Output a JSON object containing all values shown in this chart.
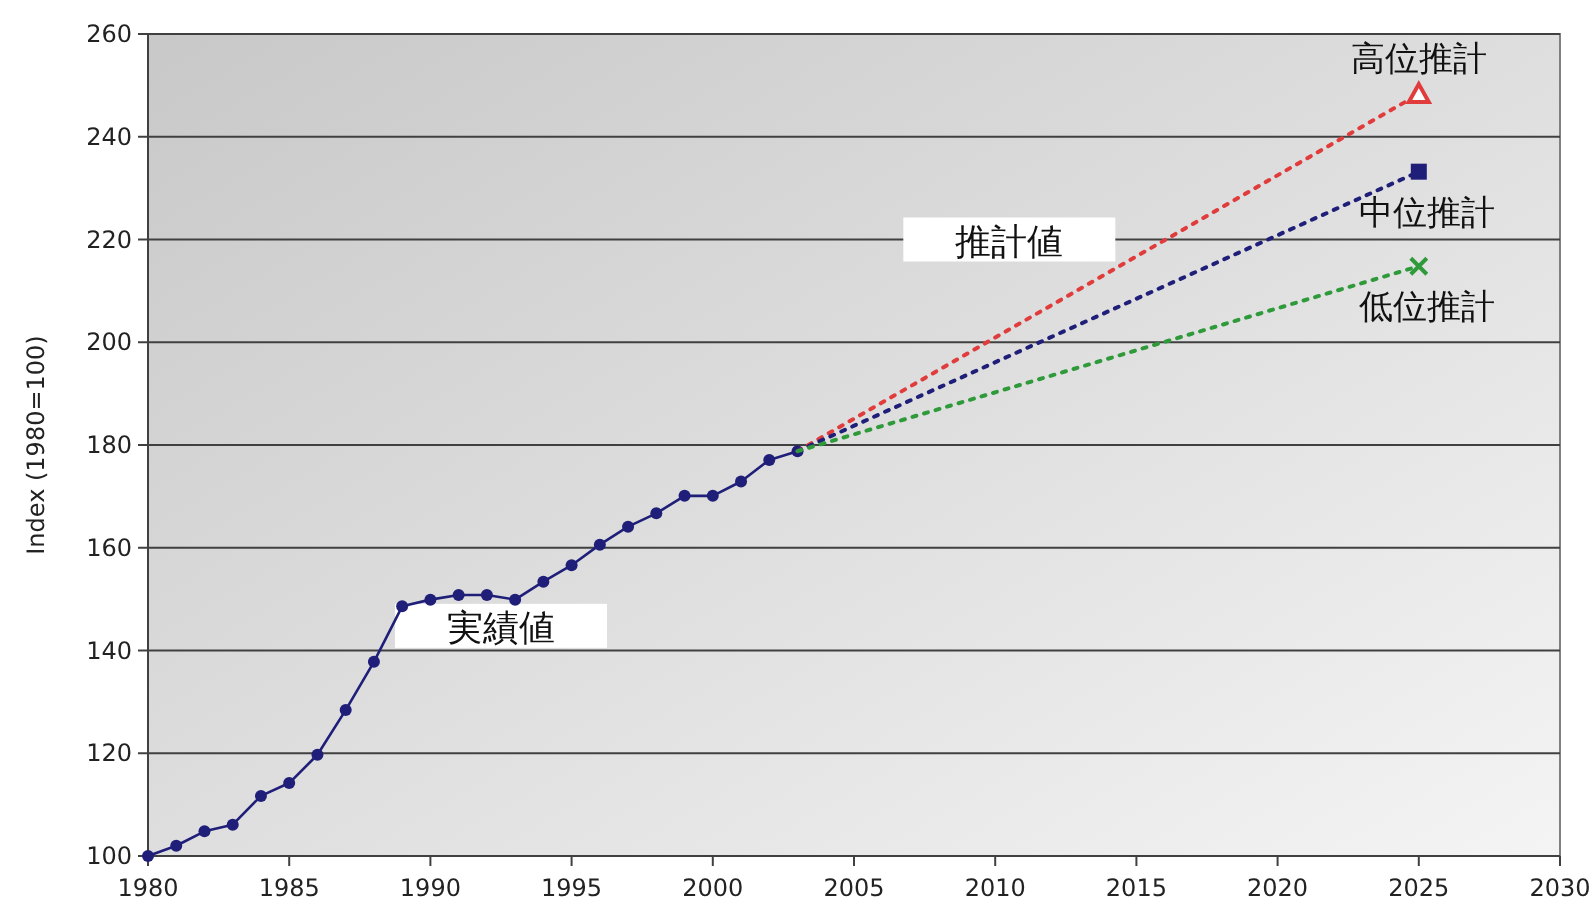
{
  "chart_data": {
    "type": "line",
    "ylabel": "Index (1980=100)",
    "xlim": [
      1980,
      2030
    ],
    "xticks": [
      1980,
      1985,
      1990,
      1995,
      2000,
      2005,
      2010,
      2015,
      2020,
      2025,
      2030
    ],
    "ylim": [
      100,
      260
    ],
    "yticks": [
      100,
      120,
      140,
      160,
      180,
      200,
      220,
      240,
      260
    ],
    "grid": "y",
    "series": [
      {
        "x": [
          1980,
          1981,
          1982,
          1983,
          1984,
          1985,
          1986,
          1987,
          1988,
          1989,
          1990,
          1991,
          1992,
          1993,
          1994,
          1995,
          1996,
          1997,
          1998,
          1999,
          2000,
          2001,
          2002,
          2003
        ],
        "values": [
          100,
          102,
          104.8,
          106.1,
          111.7,
          114.2,
          119.7,
          128.4,
          137.8,
          148.6,
          149.9,
          150.8,
          150.8,
          149.9,
          153.4,
          156.6,
          160.6,
          164.1,
          166.7,
          170.1,
          170.1,
          172.9,
          177.1,
          178.8
        ],
        "color": "#1f1f7a",
        "marker": "circle",
        "line_style": "solid"
      },
      {
        "name": "高位推計",
        "x": [
          2003,
          2025
        ],
        "values": [
          178.8,
          248.3
        ],
        "color": "#e03c3c",
        "marker": "triangle",
        "line_style": "dotted"
      },
      {
        "name": "中位推計",
        "x": [
          2003,
          2025
        ],
        "values": [
          178.8,
          233.2
        ],
        "color": "#1f1f7a",
        "marker": "square",
        "line_style": "dotted"
      },
      {
        "name": "低位推計",
        "x": [
          2003,
          2025
        ],
        "values": [
          178.8,
          214.8
        ],
        "color": "#2e9a3a",
        "marker": "cross",
        "line_style": "dotted"
      }
    ],
    "annotations": [
      "実績値",
      "推計値"
    ]
  }
}
